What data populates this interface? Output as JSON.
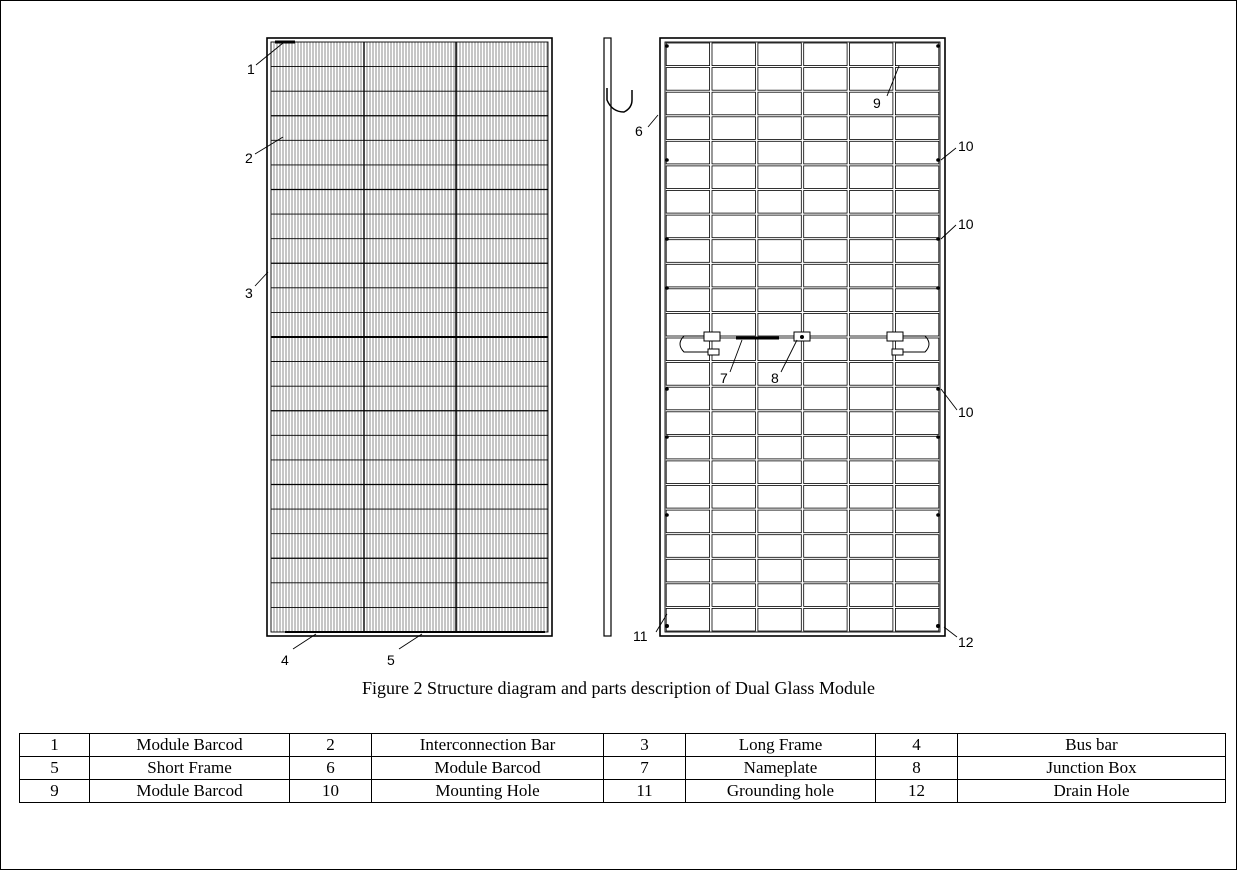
{
  "figure": {
    "caption": "Figure 2 Structure diagram and parts description of Dual Glass Module",
    "callouts": {
      "c1": "1",
      "c2": "2",
      "c3": "3",
      "c4": "4",
      "c5": "5",
      "c6": "6",
      "c7": "7",
      "c8": "8",
      "c9": "9",
      "c10a": "10",
      "c10b": "10",
      "c10c": "10",
      "c11": "11",
      "c12": "12"
    }
  },
  "parts_table": [
    [
      {
        "no": "1",
        "name": "Module Barcod"
      },
      {
        "no": "2",
        "name": "Interconnection Bar"
      },
      {
        "no": "3",
        "name": "Long Frame"
      },
      {
        "no": "4",
        "name": "Bus bar"
      }
    ],
    [
      {
        "no": "5",
        "name": "Short Frame"
      },
      {
        "no": "6",
        "name": "Module Barcod"
      },
      {
        "no": "7",
        "name": "Nameplate"
      },
      {
        "no": "8",
        "name": "Junction Box"
      }
    ],
    [
      {
        "no": "9",
        "name": "Module Barcod"
      },
      {
        "no": "10",
        "name": "Mounting Hole"
      },
      {
        "no": "11",
        "name": "Grounding hole"
      },
      {
        "no": "12",
        "name": "Drain Hole"
      }
    ]
  ]
}
